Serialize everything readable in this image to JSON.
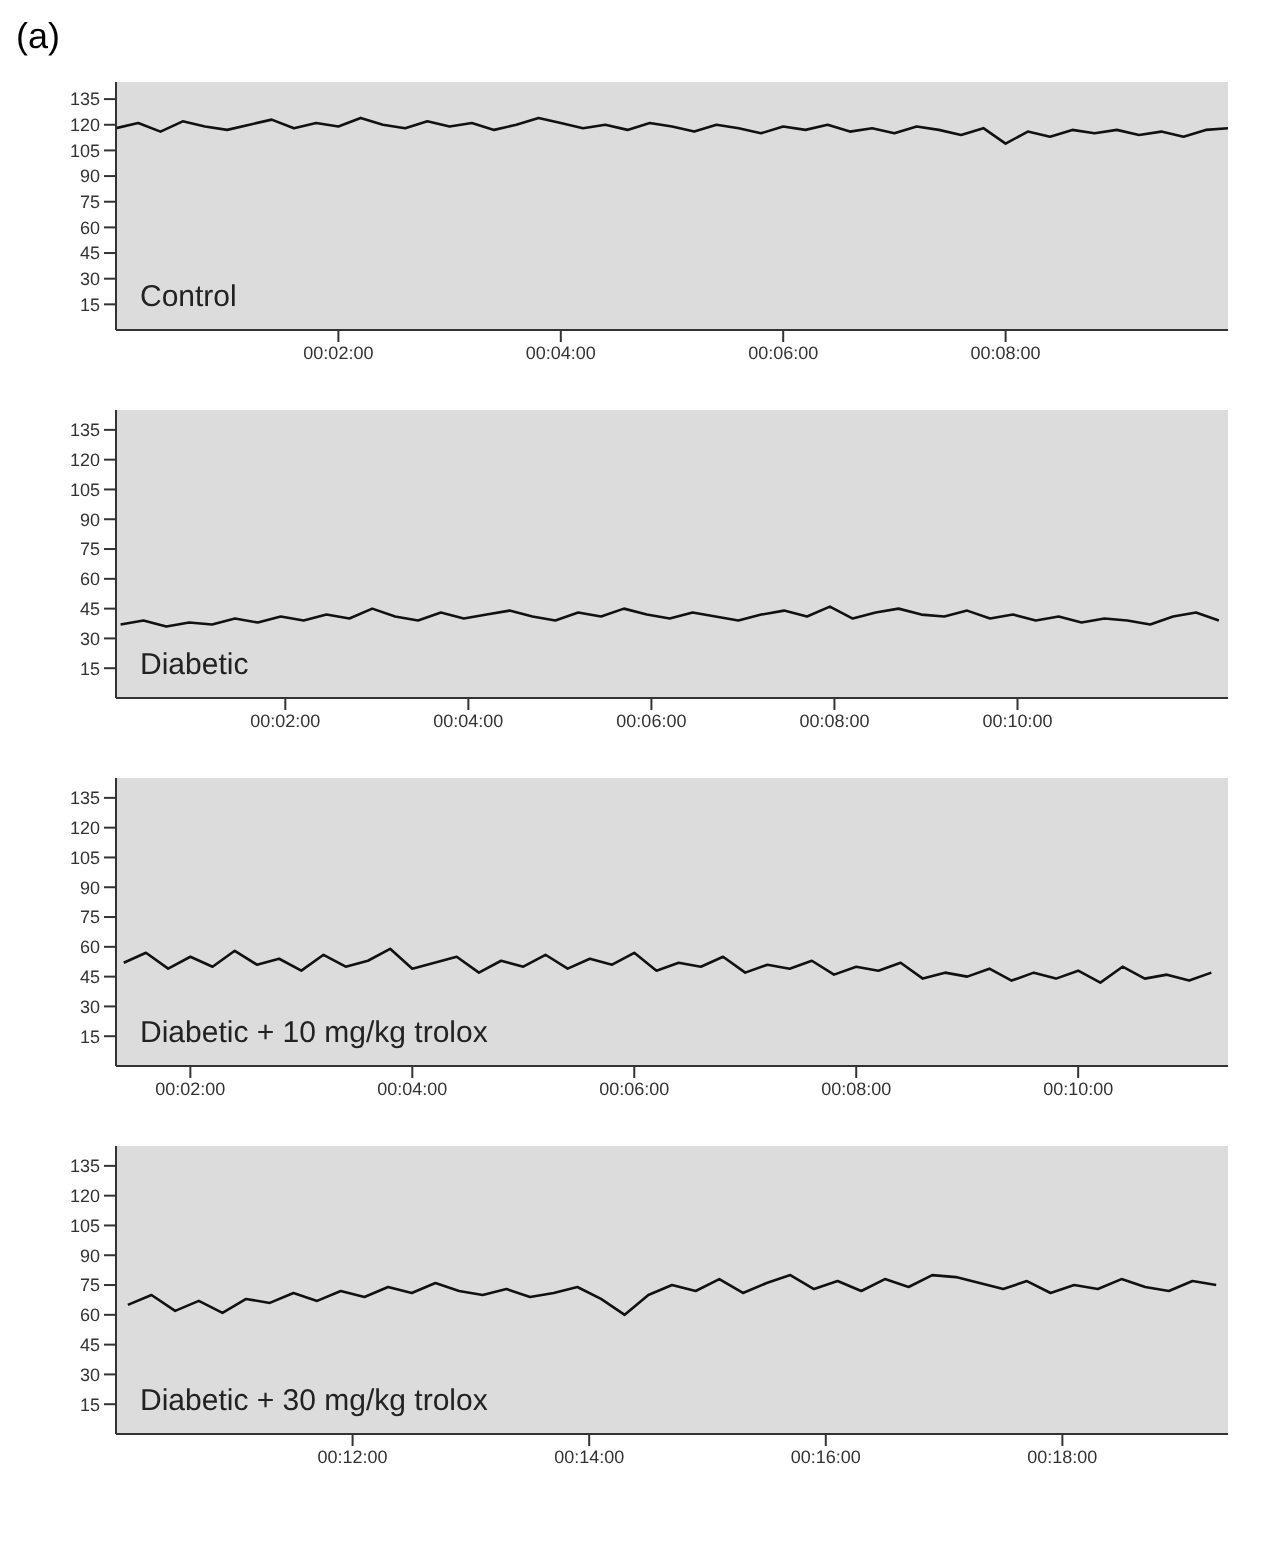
{
  "chart_data": [
    {
      "type": "line",
      "title": "(a)",
      "annotations": [
        "Control"
      ],
      "color": "#111111",
      "marker": "none",
      "grid": false,
      "legend": false,
      "xlim": [
        0,
        10
      ],
      "xticks": [
        {
          "value": 2,
          "label": "00:02:00"
        },
        {
          "value": 4,
          "label": "00:04:00"
        },
        {
          "value": 6,
          "label": "00:06:00"
        },
        {
          "value": 8,
          "label": "00:08:00"
        }
      ],
      "ylim": [
        0,
        145
      ],
      "yticks": [
        15,
        30,
        45,
        60,
        75,
        90,
        105,
        120,
        135
      ],
      "x": [
        0,
        0.2,
        0.4,
        0.6,
        0.8,
        1,
        1.2,
        1.4,
        1.6,
        1.8,
        2,
        2.2,
        2.4,
        2.6,
        2.8,
        3,
        3.2,
        3.4,
        3.6,
        3.8,
        4,
        4.2,
        4.4,
        4.6,
        4.8,
        5,
        5.2,
        5.4,
        5.6,
        5.8,
        6,
        6.2,
        6.4,
        6.6,
        6.8,
        7,
        7.2,
        7.4,
        7.6,
        7.8,
        8,
        8.2,
        8.4,
        8.6,
        8.8,
        9,
        9.2,
        9.4,
        9.6,
        9.8,
        10
      ],
      "values": [
        118,
        121,
        116,
        122,
        119,
        117,
        120,
        123,
        118,
        121,
        119,
        124,
        120,
        118,
        122,
        119,
        121,
        117,
        120,
        124,
        121,
        118,
        120,
        117,
        121,
        119,
        116,
        120,
        118,
        115,
        119,
        117,
        120,
        116,
        118,
        115,
        119,
        117,
        114,
        118,
        109,
        116,
        113,
        117,
        115,
        117,
        114,
        116,
        113,
        117,
        118
      ]
    },
    {
      "type": "line",
      "annotations": [
        "Diabetic"
      ],
      "color": "#111111",
      "marker": "none",
      "grid": false,
      "legend": false,
      "xlim": [
        0.15,
        12.3
      ],
      "xticks": [
        {
          "value": 2,
          "label": "00:02:00"
        },
        {
          "value": 4,
          "label": "00:04:00"
        },
        {
          "value": 6,
          "label": "00:06:00"
        },
        {
          "value": 8,
          "label": "00:08:00"
        },
        {
          "value": 10,
          "label": "00:10:00"
        }
      ],
      "ylim": [
        0,
        145
      ],
      "yticks": [
        15,
        30,
        45,
        60,
        75,
        90,
        105,
        120,
        135
      ],
      "x": [
        0.2,
        0.45,
        0.7,
        0.95,
        1.2,
        1.45,
        1.7,
        1.95,
        2.2,
        2.45,
        2.7,
        2.95,
        3.2,
        3.45,
        3.7,
        3.95,
        4.2,
        4.45,
        4.7,
        4.95,
        5.2,
        5.45,
        5.7,
        5.95,
        6.2,
        6.45,
        6.7,
        6.95,
        7.2,
        7.45,
        7.7,
        7.95,
        8.2,
        8.45,
        8.7,
        8.95,
        9.2,
        9.45,
        9.7,
        9.95,
        10.2,
        10.45,
        10.7,
        10.95,
        11.2,
        11.45,
        11.7,
        11.95,
        12.2
      ],
      "values": [
        37,
        39,
        36,
        38,
        37,
        40,
        38,
        41,
        39,
        42,
        40,
        45,
        41,
        39,
        43,
        40,
        42,
        44,
        41,
        39,
        43,
        41,
        45,
        42,
        40,
        43,
        41,
        39,
        42,
        44,
        41,
        46,
        40,
        43,
        45,
        42,
        41,
        44,
        40,
        42,
        39,
        41,
        38,
        40,
        39,
        37,
        41,
        43,
        39
      ]
    },
    {
      "type": "line",
      "annotations": [
        "Diabetic + 10 mg/kg trolox"
      ],
      "color": "#111111",
      "marker": "none",
      "grid": false,
      "legend": false,
      "xlim": [
        1.33,
        11.35
      ],
      "xticks": [
        {
          "value": 2,
          "label": "00:02:00"
        },
        {
          "value": 4,
          "label": "00:04:00"
        },
        {
          "value": 6,
          "label": "00:06:00"
        },
        {
          "value": 8,
          "label": "00:08:00"
        },
        {
          "value": 10,
          "label": "00:10:00"
        }
      ],
      "ylim": [
        0,
        145
      ],
      "yticks": [
        15,
        30,
        45,
        60,
        75,
        90,
        105,
        120,
        135
      ],
      "x": [
        1.4,
        1.6,
        1.8,
        2,
        2.2,
        2.4,
        2.6,
        2.8,
        3,
        3.2,
        3.4,
        3.6,
        3.8,
        4,
        4.2,
        4.4,
        4.6,
        4.8,
        5,
        5.2,
        5.4,
        5.6,
        5.8,
        6,
        6.2,
        6.4,
        6.6,
        6.8,
        7,
        7.2,
        7.4,
        7.6,
        7.8,
        8,
        8.2,
        8.4,
        8.6,
        8.8,
        9,
        9.2,
        9.4,
        9.6,
        9.8,
        10,
        10.2,
        10.4,
        10.6,
        10.8,
        11,
        11.2
      ],
      "values": [
        52,
        57,
        49,
        55,
        50,
        58,
        51,
        54,
        48,
        56,
        50,
        53,
        59,
        49,
        52,
        55,
        47,
        53,
        50,
        56,
        49,
        54,
        51,
        57,
        48,
        52,
        50,
        55,
        47,
        51,
        49,
        53,
        46,
        50,
        48,
        52,
        44,
        47,
        45,
        49,
        43,
        47,
        44,
        48,
        42,
        50,
        44,
        46,
        43,
        47
      ]
    },
    {
      "type": "line",
      "annotations": [
        "Diabetic + 30 mg/kg trolox"
      ],
      "color": "#111111",
      "marker": "none",
      "grid": false,
      "legend": false,
      "xlim": [
        10,
        19.4
      ],
      "xticks": [
        {
          "value": 12,
          "label": "00:12:00"
        },
        {
          "value": 14,
          "label": "00:14:00"
        },
        {
          "value": 16,
          "label": "00:16:00"
        },
        {
          "value": 18,
          "label": "00:18:00"
        }
      ],
      "ylim": [
        0,
        145
      ],
      "yticks": [
        15,
        30,
        45,
        60,
        75,
        90,
        105,
        120,
        135
      ],
      "x": [
        10.1,
        10.3,
        10.5,
        10.7,
        10.9,
        11.1,
        11.3,
        11.5,
        11.7,
        11.9,
        12.1,
        12.3,
        12.5,
        12.7,
        12.9,
        13.1,
        13.3,
        13.5,
        13.7,
        13.9,
        14.1,
        14.3,
        14.5,
        14.7,
        14.9,
        15.1,
        15.3,
        15.5,
        15.7,
        15.9,
        16.1,
        16.3,
        16.5,
        16.7,
        16.9,
        17.1,
        17.3,
        17.5,
        17.7,
        17.9,
        18.1,
        18.3,
        18.5,
        18.7,
        18.9,
        19.1,
        19.3
      ],
      "values": [
        65,
        70,
        62,
        67,
        61,
        68,
        66,
        71,
        67,
        72,
        69,
        74,
        71,
        76,
        72,
        70,
        73,
        69,
        71,
        74,
        68,
        60,
        70,
        75,
        72,
        78,
        71,
        76,
        80,
        73,
        77,
        72,
        78,
        74,
        80,
        79,
        76,
        73,
        77,
        71,
        75,
        73,
        78,
        74,
        72,
        77,
        75
      ]
    }
  ]
}
